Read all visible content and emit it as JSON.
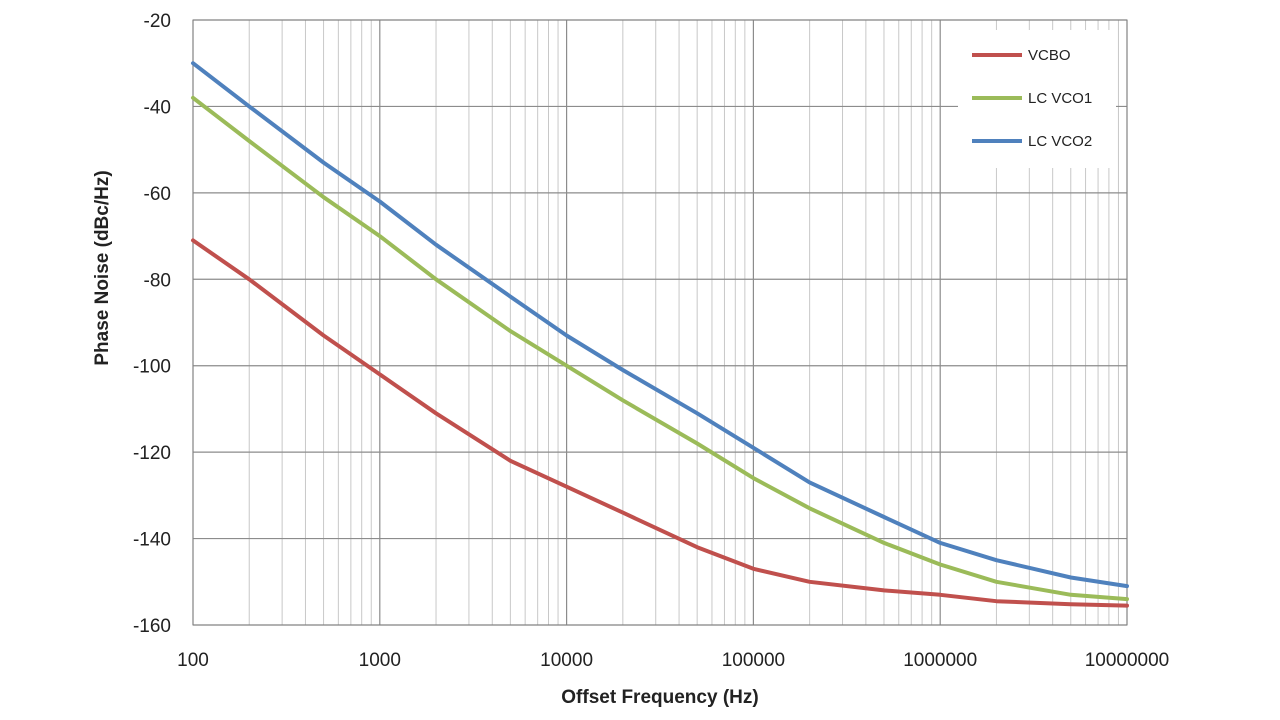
{
  "chart_data": {
    "type": "line",
    "xlabel": "Offset Frequency (Hz)",
    "ylabel": "Phase Noise (dBc/Hz)",
    "xscale": "log",
    "xlim": [
      100,
      10000000
    ],
    "ylim": [
      -160,
      -20
    ],
    "xticks": [
      100,
      1000,
      10000,
      100000,
      1000000,
      10000000
    ],
    "xtick_labels": [
      "100",
      "1000",
      "10000",
      "100000",
      "1000000",
      "10000000"
    ],
    "yticks": [
      -20,
      -40,
      -60,
      -80,
      -100,
      -120,
      -140,
      -160
    ],
    "ytick_labels": [
      "-20",
      "-40",
      "-60",
      "-80",
      "-100",
      "-120",
      "-140",
      "-160"
    ],
    "grid": true,
    "legend_position": "top-right",
    "series": [
      {
        "name": "VCBO",
        "color": "#c0504d",
        "x": [
          100,
          200,
          500,
          1000,
          2000,
          5000,
          10000,
          20000,
          50000,
          100000,
          200000,
          500000,
          1000000,
          2000000,
          5000000,
          10000000
        ],
        "y": [
          -71,
          -80,
          -93,
          -102,
          -111,
          -122,
          -128,
          -134,
          -142,
          -147,
          -150,
          -152,
          -153,
          -154.5,
          -155.2,
          -155.5
        ]
      },
      {
        "name": "LC VCO1",
        "color": "#9bbb59",
        "x": [
          100,
          200,
          500,
          1000,
          2000,
          5000,
          10000,
          20000,
          50000,
          100000,
          200000,
          500000,
          1000000,
          2000000,
          5000000,
          10000000
        ],
        "y": [
          -38,
          -48,
          -61,
          -70,
          -80,
          -92,
          -100,
          -108,
          -118,
          -126,
          -133,
          -141,
          -146,
          -150,
          -153,
          -154
        ]
      },
      {
        "name": "LC VCO2",
        "color": "#4f81bd",
        "x": [
          100,
          200,
          500,
          1000,
          2000,
          5000,
          10000,
          20000,
          50000,
          100000,
          200000,
          500000,
          1000000,
          2000000,
          5000000,
          10000000
        ],
        "y": [
          -30,
          -40,
          -53,
          -62,
          -72,
          -84,
          -93,
          -101,
          -111,
          -119,
          -127,
          -135,
          -141,
          -145,
          -149,
          -151
        ]
      }
    ]
  }
}
